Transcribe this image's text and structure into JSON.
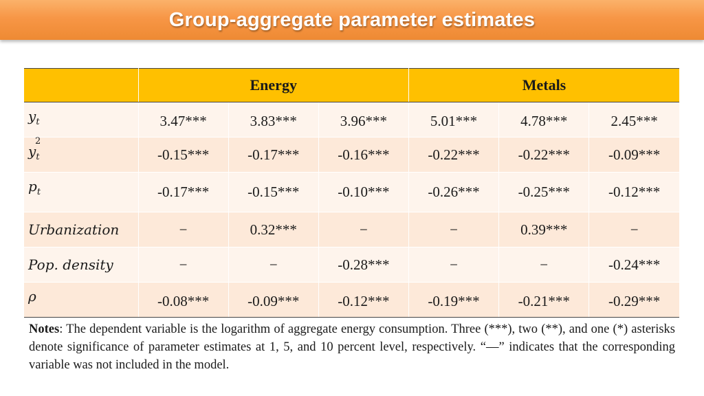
{
  "title": "Group-aggregate parameter estimates",
  "table": {
    "groups": [
      "Energy",
      "Metals"
    ],
    "rows": [
      {
        "label": "y",
        "sub": "t",
        "sup": "",
        "values": [
          "3.47***",
          "3.83***",
          "3.96***",
          "5.01***",
          "4.78***",
          "2.45***"
        ]
      },
      {
        "label": "y",
        "sub": "t",
        "sup": "2",
        "values": [
          "-0.15***",
          "-0.17***",
          "-0.16***",
          "-0.22***",
          "-0.22***",
          "-0.09***"
        ]
      },
      {
        "label": "p",
        "sub": "t",
        "sup": "",
        "values": [
          "-0.17***",
          "-0.15***",
          "-0.10***",
          "-0.26***",
          "-0.25***",
          "-0.12***"
        ]
      },
      {
        "label": "Urbanization",
        "sub": "",
        "sup": "",
        "values": [
          "−",
          "0.32***",
          "−",
          "−",
          "0.39***",
          "−"
        ]
      },
      {
        "label": "Pop. density",
        "sub": "",
        "sup": "",
        "values": [
          "−",
          "−",
          "-0.28***",
          "−",
          "−",
          "-0.24***"
        ]
      },
      {
        "label": "ρ",
        "sub": "",
        "sup": "",
        "values": [
          "-0.08***",
          "-0.09***",
          "-0.12***",
          "-0.19***",
          "-0.21***",
          "-0.29***"
        ]
      }
    ]
  },
  "notes": {
    "heading": "Notes",
    "text": ": The dependent variable is the logarithm of aggregate energy consumption. Three (***), two (**), and one (*) asterisks denote significance of parameter estimates at 1, 5, and 10 percent level, respectively. “—” indicates that the corresponding variable was not included in the model."
  }
}
